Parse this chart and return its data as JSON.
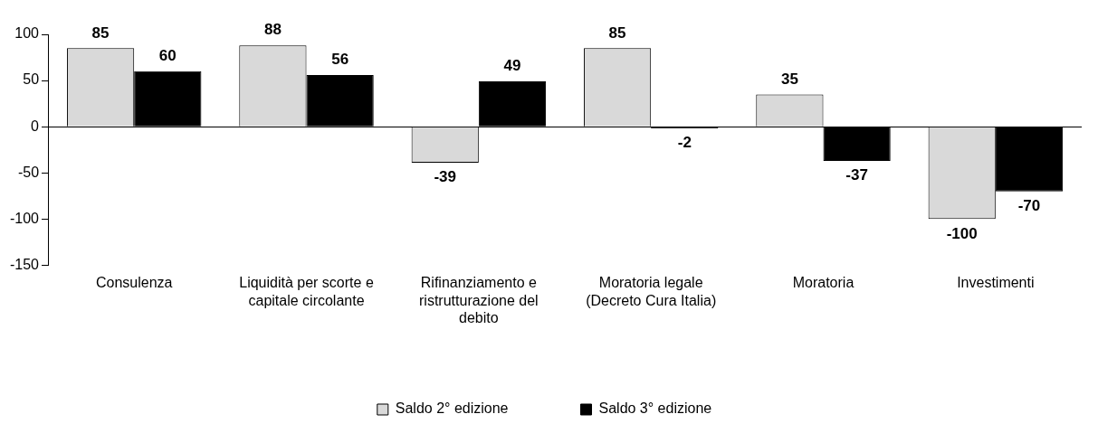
{
  "chart_data": {
    "type": "bar",
    "categories": [
      "Consulenza",
      "Liquidità per scorte e capitale circolante",
      "Rifinanziamento e ristrutturazione del debito",
      "Moratoria legale (Decreto Cura Italia)",
      "Moratoria",
      "Investimenti"
    ],
    "series": [
      {
        "name": "Saldo 2° edizione",
        "color": "#d9d9d9",
        "values": [
          85,
          88,
          -39,
          85,
          35,
          -100
        ]
      },
      {
        "name": "Saldo 3° edizione",
        "color": "#000000",
        "values": [
          60,
          56,
          49,
          -2,
          -37,
          -70
        ]
      }
    ],
    "ylim": [
      -150,
      100
    ],
    "yticks": [
      -150,
      -100,
      -50,
      0,
      50,
      100
    ],
    "data_labels": true,
    "legend": "bottom"
  }
}
